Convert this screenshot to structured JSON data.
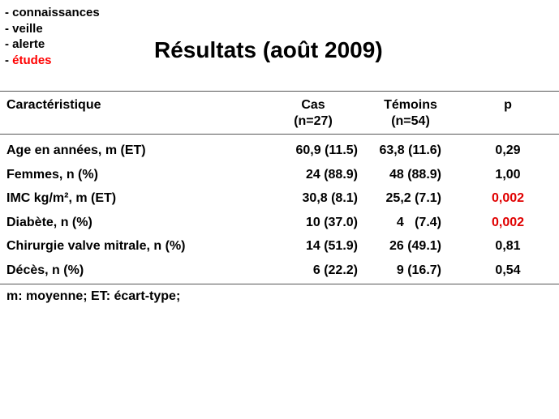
{
  "nav": {
    "items": [
      {
        "label": "- connaissances",
        "active": false
      },
      {
        "label": "- veille",
        "active": false
      },
      {
        "label": "- alerte",
        "active": false
      },
      {
        "label": "études",
        "active": true
      }
    ],
    "active_color": "#ff0000"
  },
  "title": "Résultats (août 2009)",
  "table": {
    "header": {
      "characteristic": "Caractéristique",
      "cases_line1": "Cas",
      "cases_line2": "(n=27)",
      "controls_line1": "Témoins",
      "controls_line2": "(n=54)",
      "p": "p"
    },
    "rows": [
      {
        "label": "Age en années, m (ET)",
        "cases": "60,9 (11.5)",
        "controls": "63,8 (11.6)",
        "p": "0,29",
        "significant": false
      },
      {
        "label": "Femmes, n (%)",
        "cases": "24 (88.9)",
        "controls": "48 (88.9)",
        "p": "1,00",
        "significant": false
      },
      {
        "label": "IMC kg/m², m (ET)",
        "cases": "30,8 (8.1)",
        "controls": "25,2 (7.1)",
        "p": "0,002",
        "significant": true
      },
      {
        "label": "Diabète, n (%)",
        "cases": "10 (37.0)",
        "controls": "4   (7.4)",
        "p": "0,002",
        "significant": true
      },
      {
        "label": "Chirurgie valve mitrale, n (%)",
        "cases": "14 (51.9)",
        "controls": "26 (49.1)",
        "p": "0,81",
        "significant": false
      },
      {
        "label": "Décès, n (%)",
        "cases": "6 (22.2)",
        "controls": "9 (16.7)",
        "p": "0,54",
        "significant": false
      }
    ],
    "significant_color": "#e00000"
  },
  "footnote": "m: moyenne; ET: écart-type;"
}
